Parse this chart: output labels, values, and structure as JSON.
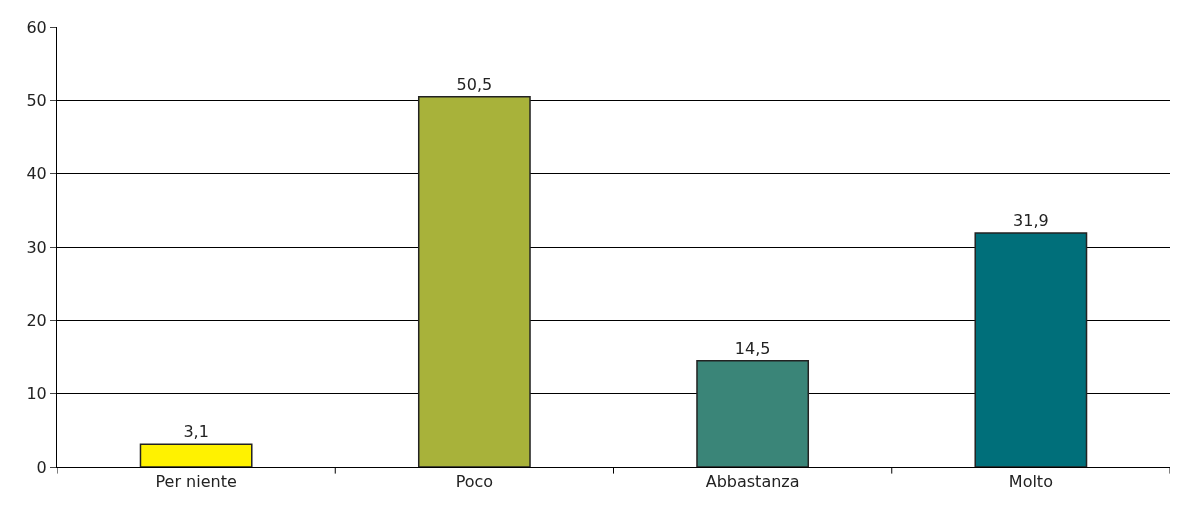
{
  "chart_data": {
    "type": "bar",
    "categories": [
      "Per niente",
      "Poco",
      "Abbastanza",
      "Molto"
    ],
    "values": [
      3.1,
      50.5,
      14.5,
      31.9
    ],
    "colors": [
      "#fff200",
      "#a8b23a",
      "#3a8578",
      "#006f7a"
    ],
    "value_labels": [
      "3,1",
      "50,5",
      "14,5",
      "31,9"
    ],
    "ylim": [
      0,
      60
    ],
    "yticks": [
      0,
      10,
      20,
      30,
      40,
      50,
      60
    ],
    "grid": "y"
  }
}
